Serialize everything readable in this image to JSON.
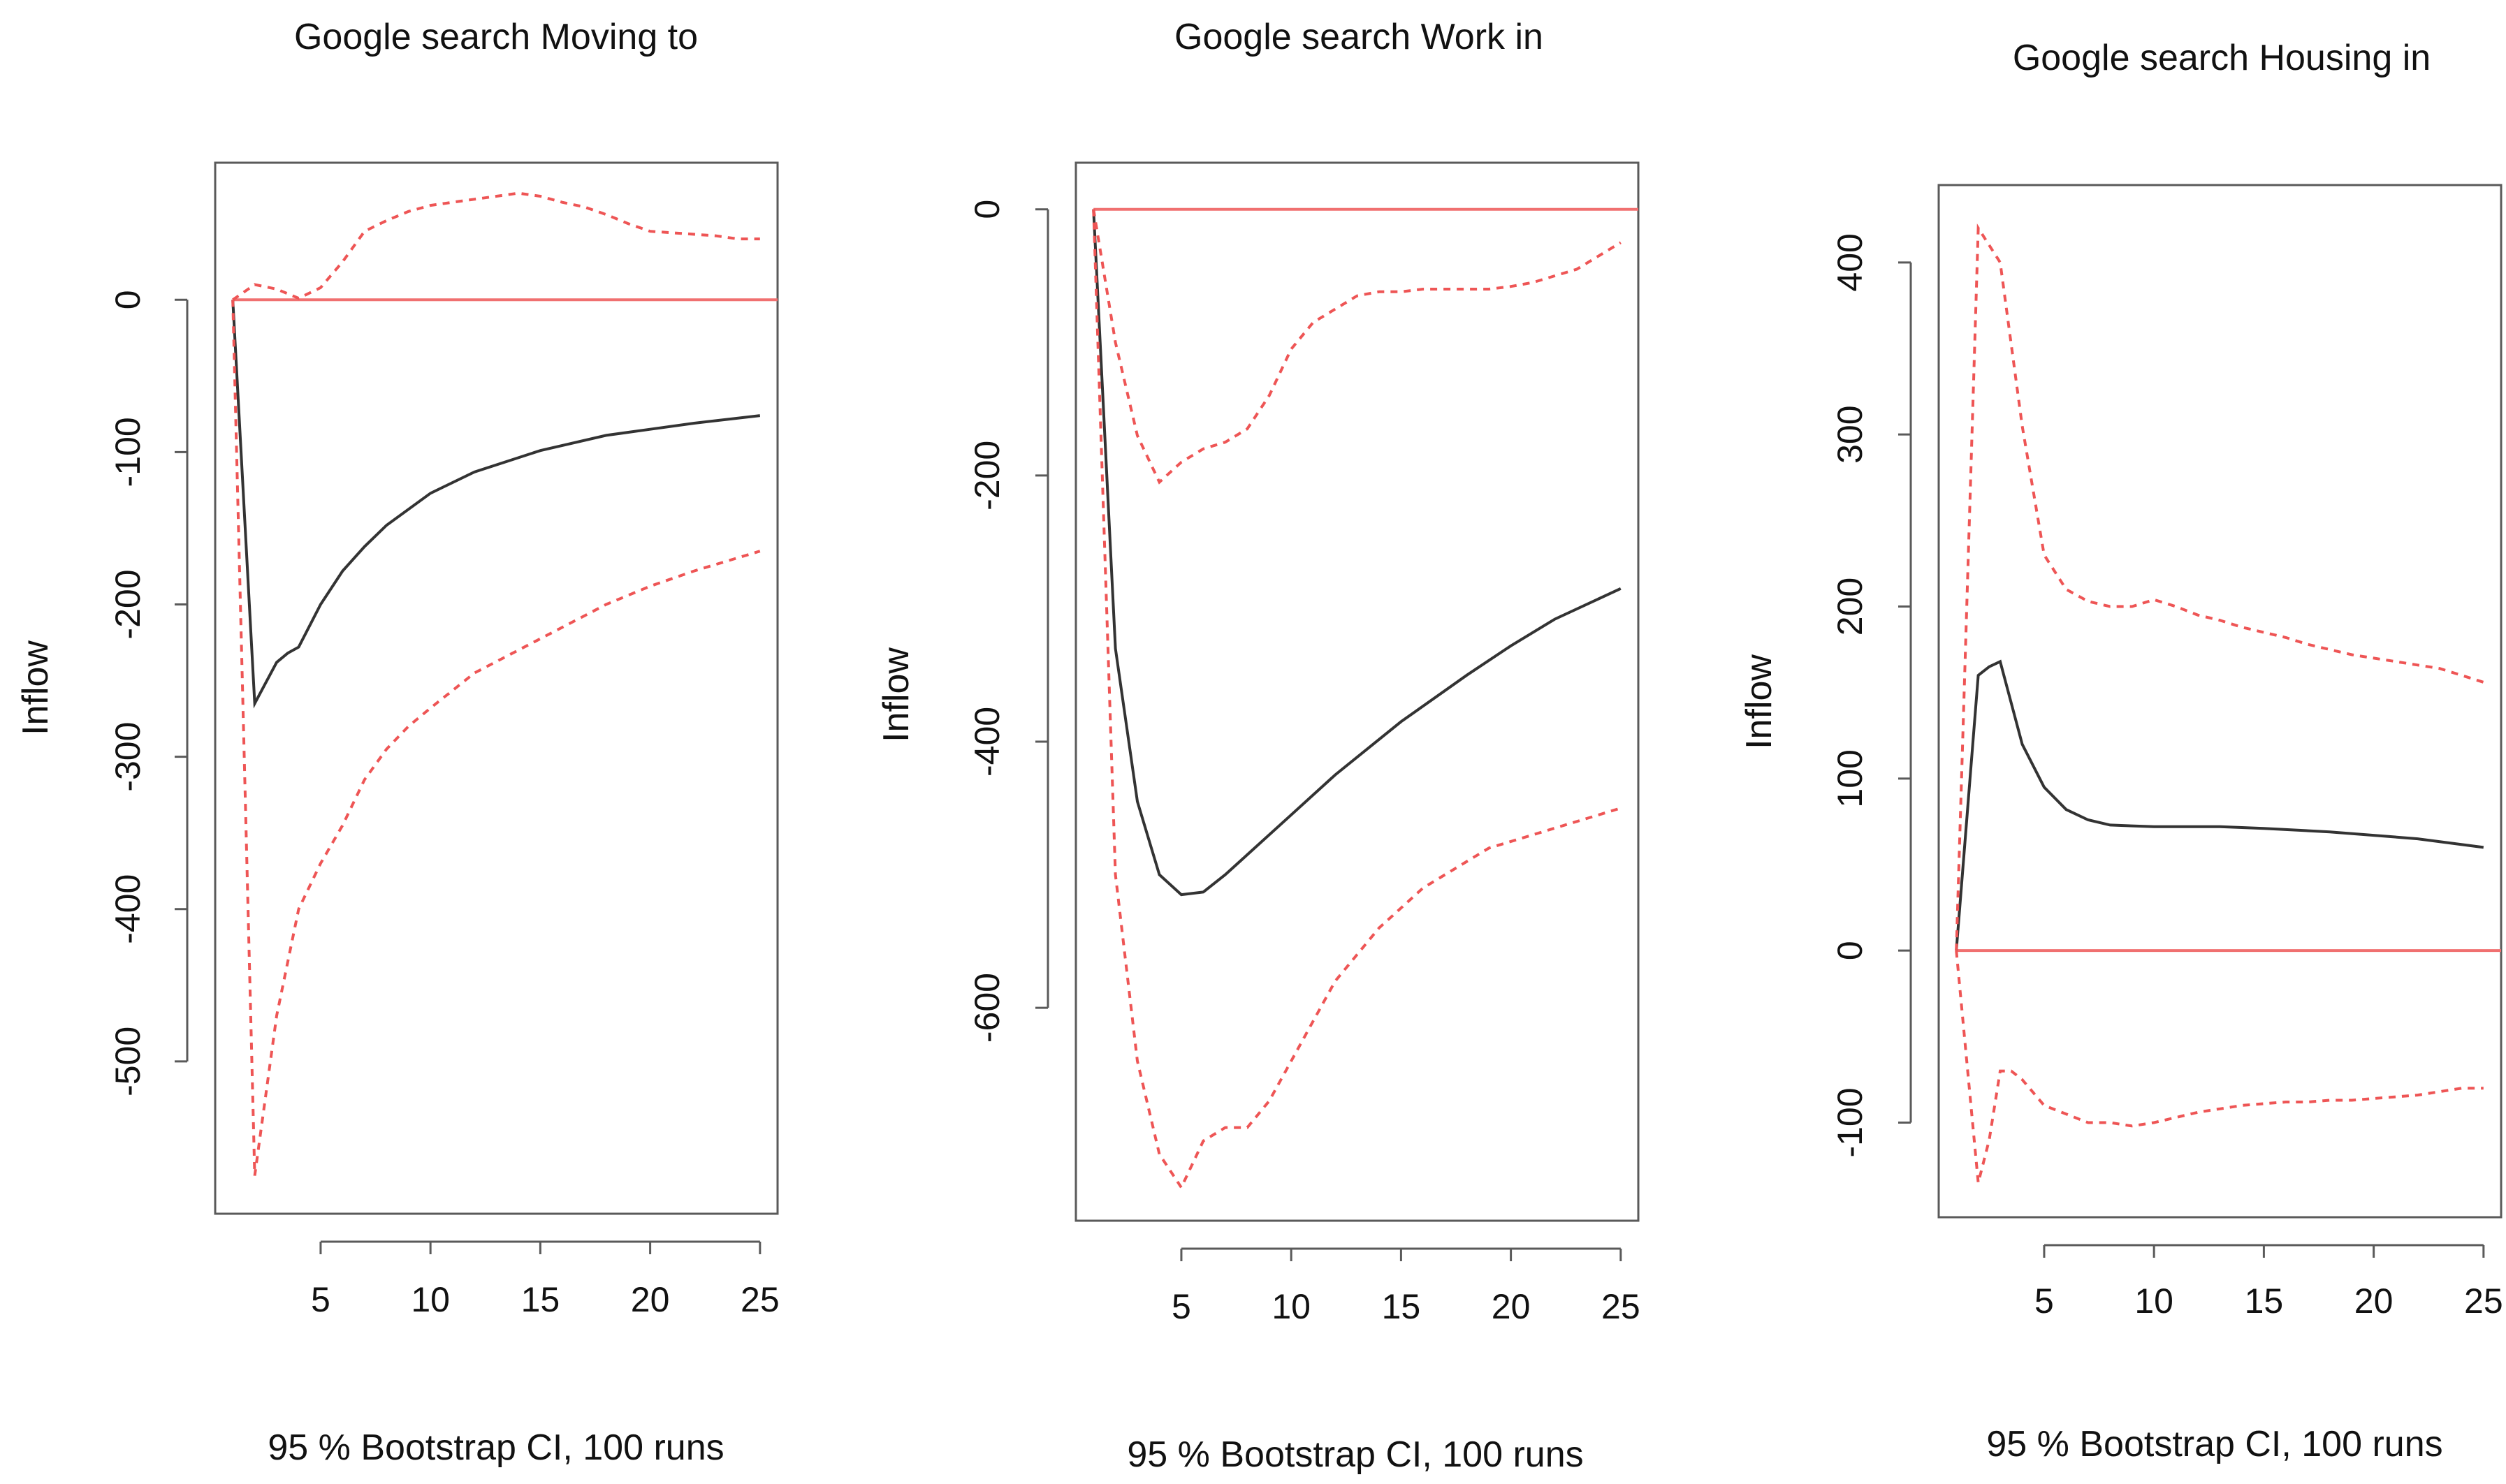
{
  "colors": {
    "zero_line": "#f07070",
    "irf_line": "#333333",
    "ci_line": "#ee5555",
    "frame": "#5a5a5a"
  },
  "chart_data": [
    {
      "type": "line",
      "title": "Google search Moving to",
      "ylabel": "Inflow",
      "caption": "95 % Bootstrap CI,  100 runs",
      "xlim": [
        0.2,
        25.8
      ],
      "ylim": [
        -600,
        90
      ],
      "xticks": [
        5,
        10,
        15,
        20,
        25
      ],
      "yticks": [
        0,
        -100,
        -200,
        -300,
        -400,
        -500
      ],
      "zero_line": 0,
      "series": [
        {
          "name": "irf",
          "style": "solid",
          "x": [
            1,
            2,
            3,
            3.5,
            4,
            5,
            6,
            7,
            8,
            10,
            12,
            15,
            18,
            20,
            22,
            25
          ],
          "y": [
            0,
            -265,
            -238,
            -232,
            -228,
            -200,
            -178,
            -162,
            -148,
            -127,
            -113,
            -99,
            -89,
            -85,
            -81,
            -76
          ]
        },
        {
          "name": "upper_ci",
          "style": "dashed",
          "x": [
            1,
            2,
            3,
            4,
            5,
            6,
            7,
            8,
            9,
            10,
            11,
            12,
            13,
            14,
            15,
            16,
            17,
            18,
            19,
            20,
            21,
            22,
            23,
            24,
            25
          ],
          "y": [
            0,
            10,
            7,
            1,
            8,
            25,
            45,
            52,
            58,
            62,
            64,
            66,
            68,
            70,
            68,
            64,
            61,
            56,
            50,
            45,
            44,
            43,
            42,
            40,
            40
          ]
        },
        {
          "name": "lower_ci",
          "style": "dashed",
          "x": [
            1,
            2,
            3,
            4,
            5,
            6,
            7,
            8,
            9,
            10,
            12,
            14,
            16,
            18,
            20,
            22,
            25
          ],
          "y": [
            0,
            -575,
            -470,
            -400,
            -370,
            -345,
            -315,
            -295,
            -280,
            -268,
            -245,
            -230,
            -215,
            -200,
            -188,
            -178,
            -165
          ]
        }
      ]
    },
    {
      "type": "line",
      "title": "Google search Work in",
      "ylabel": "Inflow",
      "caption": "95 % Bootstrap CI,  100 runs",
      "xlim": [
        0.2,
        25.8
      ],
      "ylim": [
        -760,
        35
      ],
      "xticks": [
        5,
        10,
        15,
        20,
        25
      ],
      "yticks": [
        0,
        -200,
        -400,
        -600
      ],
      "zero_line": 0,
      "series": [
        {
          "name": "irf",
          "style": "solid",
          "x": [
            1,
            2,
            3,
            4,
            5,
            6,
            7,
            8,
            10,
            12,
            15,
            18,
            20,
            22,
            25
          ],
          "y": [
            0,
            -330,
            -445,
            -500,
            -515,
            -513,
            -500,
            -485,
            -455,
            -425,
            -385,
            -350,
            -328,
            -308,
            -285
          ]
        },
        {
          "name": "upper_ci",
          "style": "dashed",
          "x": [
            1,
            2,
            3,
            4,
            5,
            6,
            7,
            8,
            9,
            10,
            11,
            12,
            13,
            14,
            15,
            16,
            17,
            18,
            19,
            20,
            21,
            22,
            23,
            24,
            25
          ],
          "y": [
            0,
            -100,
            -170,
            -205,
            -190,
            -180,
            -175,
            -165,
            -140,
            -105,
            -85,
            -75,
            -65,
            -62,
            -62,
            -60,
            -60,
            -60,
            -60,
            -58,
            -55,
            -50,
            -45,
            -35,
            -25
          ]
        },
        {
          "name": "lower_ci",
          "style": "dashed",
          "x": [
            1,
            2,
            3,
            4,
            5,
            6,
            7,
            8,
            9,
            10,
            11,
            12,
            13,
            14,
            15,
            16,
            17,
            18,
            19,
            20,
            21,
            22,
            23,
            24,
            25
          ],
          "y": [
            0,
            -500,
            -640,
            -710,
            -735,
            -700,
            -690,
            -690,
            -670,
            -640,
            -610,
            -580,
            -560,
            -540,
            -525,
            -510,
            -500,
            -490,
            -480,
            -475,
            -470,
            -465,
            -460,
            -455,
            -450
          ]
        }
      ]
    },
    {
      "type": "line",
      "title": "Google search Housing in",
      "ylabel": "Inflow",
      "caption": "95 % Bootstrap CI,  100 runs",
      "xlim": [
        0.2,
        25.8
      ],
      "ylim": [
        -155,
        445
      ],
      "xticks": [
        5,
        10,
        15,
        20,
        25
      ],
      "yticks": [
        400,
        300,
        200,
        100,
        0,
        -100
      ],
      "zero_line": 0,
      "series": [
        {
          "name": "irf",
          "style": "solid",
          "x": [
            1,
            2,
            2.5,
            3,
            4,
            5,
            6,
            7,
            8,
            10,
            13,
            15,
            18,
            20,
            22,
            25
          ],
          "y": [
            0,
            160,
            165,
            168,
            120,
            95,
            82,
            76,
            73,
            72,
            72,
            71,
            69,
            67,
            65,
            60
          ]
        },
        {
          "name": "upper_ci",
          "style": "dashed",
          "x": [
            1,
            2,
            3,
            4,
            5,
            6,
            7,
            8,
            9,
            10,
            11,
            12,
            13,
            14,
            15,
            16,
            17,
            18,
            19,
            20,
            21,
            22,
            23,
            24,
            25
          ],
          "y": [
            0,
            420,
            400,
            305,
            230,
            210,
            203,
            200,
            200,
            204,
            200,
            195,
            192,
            188,
            185,
            182,
            178,
            175,
            172,
            170,
            168,
            166,
            164,
            160,
            156
          ]
        },
        {
          "name": "lower_ci",
          "style": "dashed",
          "x": [
            1,
            2,
            2.5,
            3,
            3.5,
            4,
            5,
            6,
            7,
            8,
            9,
            10,
            11,
            12,
            13,
            14,
            15,
            16,
            17,
            18,
            19,
            20,
            21,
            22,
            23,
            24,
            25
          ],
          "y": [
            0,
            -135,
            -110,
            -70,
            -70,
            -75,
            -90,
            -95,
            -100,
            -100,
            -102,
            -100,
            -97,
            -94,
            -92,
            -90,
            -89,
            -88,
            -88,
            -87,
            -87,
            -86,
            -85,
            -84,
            -82,
            -80,
            -80
          ]
        }
      ]
    }
  ]
}
